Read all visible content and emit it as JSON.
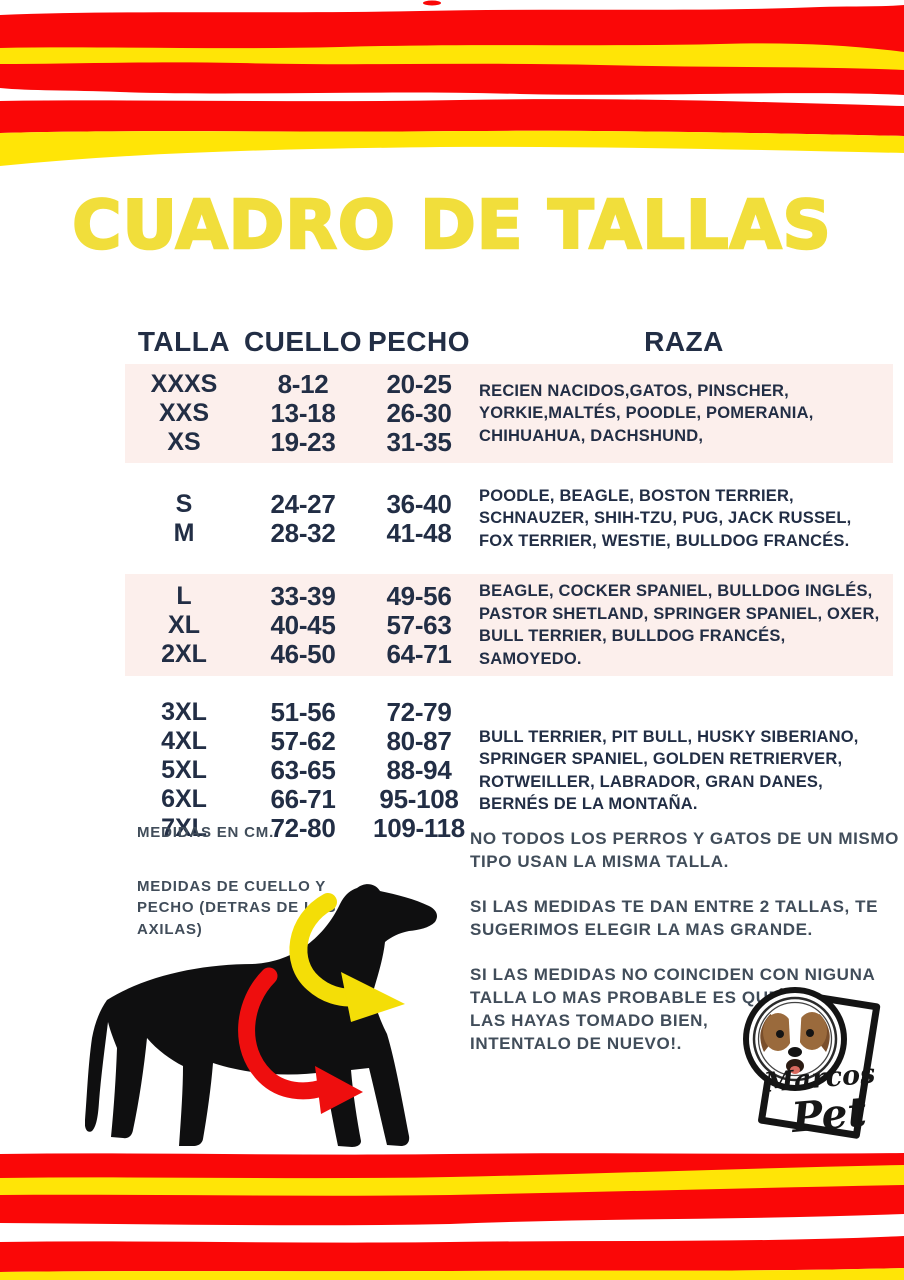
{
  "title": "CUADRO DE TALLAS",
  "table": {
    "headers": {
      "talla": "TALLA",
      "cuello": "CUELLO",
      "pecho": "PECHO",
      "raza": "RAZA"
    },
    "groups": [
      {
        "highlight": true,
        "rows": [
          {
            "talla": "XXXS",
            "cuello": "8-12",
            "pecho": "20-25"
          },
          {
            "talla": "XXS",
            "cuello": "13-18",
            "pecho": "26-30"
          },
          {
            "talla": "XS",
            "cuello": "19-23",
            "pecho": "31-35"
          }
        ],
        "raza": "RECIEN NACIDOS,GATOS, PINSCHER,\nYORKIE,MALTÉS, POODLE, POMERANIA,\nCHIHUAHUA, DACHSHUND,"
      },
      {
        "highlight": false,
        "rows": [
          {
            "talla": "S",
            "cuello": "24-27",
            "pecho": "36-40"
          },
          {
            "talla": "M",
            "cuello": "28-32",
            "pecho": "41-48"
          }
        ],
        "raza": "POODLE, BEAGLE, BOSTON TERRIER,\nSCHNAUZER, SHIH-TZU, PUG, JACK RUSSEL,\nFOX TERRIER, WESTIE, BULLDOG FRANCÉS."
      },
      {
        "highlight": true,
        "rows": [
          {
            "talla": "L",
            "cuello": "33-39",
            "pecho": "49-56"
          },
          {
            "talla": "XL",
            "cuello": "40-45",
            "pecho": "57-63"
          },
          {
            "talla": "2XL",
            "cuello": "46-50",
            "pecho": "64-71"
          }
        ],
        "raza": "BEAGLE, COCKER SPANIEL, BULLDOG INGLÉS,\nPASTOR SHETLAND, SPRINGER SPANIEL, OXER,\nBULL TERRIER, BULLDOG FRANCÉS, SAMOYEDO."
      },
      {
        "highlight": false,
        "rows": [
          {
            "talla": "3XL",
            "cuello": "51-56",
            "pecho": "72-79"
          },
          {
            "talla": "4XL",
            "cuello": "57-62",
            "pecho": "80-87"
          },
          {
            "talla": "5XL",
            "cuello": "63-65",
            "pecho": "88-94"
          },
          {
            "talla": "6XL",
            "cuello": "66-71",
            "pecho": "95-108"
          },
          {
            "talla": "7XL",
            "cuello": "72-80",
            "pecho": "109-118"
          }
        ],
        "raza": "BULL TERRIER, PIT BULL, HUSKY SIBERIANO,\nSPRINGER SPANIEL, GOLDEN RETRIERVER,\nROTWEILLER, LABRADOR, GRAN DANES,\nBERNÉS DE LA MONTAÑA."
      }
    ]
  },
  "notes": {
    "left_units": "MEDIDAS EN CM.",
    "left_where": "MEDIDAS DE CUELLO Y\nPECHO (DETRAS DE LAS\nAXILAS)",
    "right": [
      "NO TODOS LOS PERROS Y GATOS DE UN MISMO\nTIPO USAN LA MISMA TALLA.",
      "SI LAS MEDIDAS TE DAN ENTRE 2 TALLAS, TE\nSUGERIMOS ELEGIR LA MAS GRANDE.",
      "SI LAS MEDIDAS NO COINCIDEN CON NIGUNA\nTALLA LO MAS PROBABLE ES QUE NO\nLAS HAYAS TOMADO BIEN,\nINTENTALO DE NUEVO!."
    ]
  },
  "logo": {
    "line1": "Marcos",
    "line2": "Pet"
  },
  "icons": {
    "dog_silhouette": "dog-silhouette",
    "neck_arrow": "neck-measure-arrow",
    "chest_arrow": "chest-measure-arrow"
  },
  "colors": {
    "stripe_red": "#FA0707",
    "stripe_yellow": "#FFE506",
    "title_yellow": "#F1DE3B",
    "table_navy": "#222E45",
    "note_gray": "#414D5A",
    "row_pink": "#FCEFEC",
    "arrow_yellow": "#F4DE07",
    "arrow_red": "#EE0E0E"
  }
}
